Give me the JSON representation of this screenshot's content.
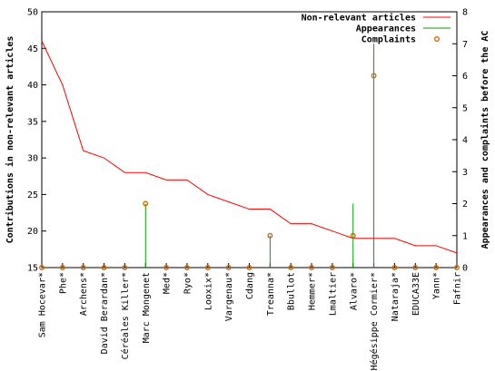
{
  "chart_data": {
    "type": "line",
    "title": "",
    "ylabel_left": "Contributions in non-relevant articles",
    "ylabel_right": "Appearances and complaints before the AC",
    "ylim_left": [
      15,
      50
    ],
    "yticks_left": [
      15,
      20,
      25,
      30,
      35,
      40,
      45,
      50
    ],
    "ylim_right": [
      0,
      8
    ],
    "yticks_right": [
      0,
      1,
      2,
      3,
      4,
      5,
      6,
      7,
      8
    ],
    "grid": false,
    "legend_position": "top-right",
    "categories": [
      "Sam Hocevar*",
      "Phe*",
      "Archens*",
      "David Berardan*",
      "Céréales Killer*",
      "Marc Mongenet",
      "Med*",
      "Ryo*",
      "Looxix*",
      "Vargenau*",
      "Cdang",
      "Treanna*",
      "Bbullot",
      "Hemmer*",
      "Lmaltier",
      "Alvaro*",
      "Hégésippe Cormier*",
      "Nataraja*",
      "EDUCA33E",
      "Yann*",
      "Fafnir"
    ],
    "series": [
      {
        "name": "Non-relevant articles",
        "type": "line",
        "axis": "left",
        "color": "#ff0000",
        "values": [
          46,
          40,
          31,
          30,
          28,
          28,
          27,
          27,
          25,
          24,
          23,
          23,
          21,
          21,
          20,
          19,
          19,
          19,
          18,
          18,
          17
        ]
      },
      {
        "name": "Appearances",
        "type": "impulses",
        "axis": "right",
        "color": "#00a000",
        "values": [
          0,
          0,
          0,
          0,
          0,
          2,
          0,
          0,
          0,
          0,
          0,
          1,
          0,
          0,
          0,
          2,
          7,
          0,
          0,
          0,
          0
        ]
      },
      {
        "name": "Complaints",
        "type": "points",
        "axis": "right",
        "color": "#c86400",
        "values": [
          0,
          0,
          0,
          0,
          0,
          2,
          0,
          0,
          0,
          0,
          0,
          1,
          0,
          0,
          0,
          1,
          6,
          0,
          0,
          0,
          0
        ]
      }
    ]
  }
}
